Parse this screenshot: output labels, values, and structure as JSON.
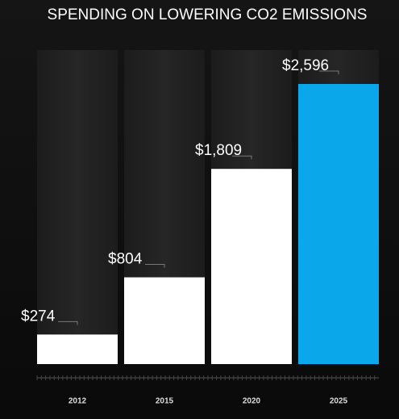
{
  "chart_data": {
    "type": "bar",
    "title": "SPENDING ON LOWERING CO2 EMISSIONS",
    "categories": [
      "2012",
      "2015",
      "2020",
      "2025"
    ],
    "values": [
      274,
      804,
      1809,
      2596
    ],
    "value_labels": [
      "$274",
      "$804",
      "$1,809",
      "$2,596"
    ],
    "colors": [
      "#ffffff",
      "#ffffff",
      "#ffffff",
      "#0aa8ea"
    ]
  }
}
